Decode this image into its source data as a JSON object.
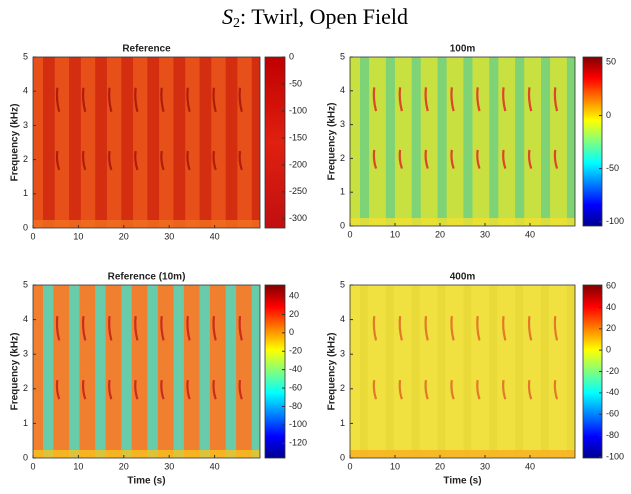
{
  "suptitle": {
    "symbol": "S",
    "subscript": "2",
    "text": ": Twirl, Open Field"
  },
  "chart_data": [
    {
      "type": "spectrogram",
      "title": "Reference",
      "ylabel": "Frequency (kHz)",
      "colormap": "red",
      "xlim": [
        0,
        50
      ],
      "xticks": [
        0,
        10,
        20,
        30,
        40
      ],
      "ylim": [
        0,
        5
      ],
      "yticks": [
        0,
        1,
        2,
        3,
        4,
        5
      ],
      "clim": [
        -317,
        0
      ],
      "cticks": [
        0,
        -50,
        -100,
        -150,
        -200,
        -250,
        -300
      ]
    },
    {
      "type": "spectrogram",
      "title": "100m",
      "ylabel": "Frequency (kHz)",
      "colormap": "jet",
      "xlim": [
        0,
        50
      ],
      "xticks": [
        0,
        10,
        20,
        30,
        40
      ],
      "ylim": [
        0,
        5
      ],
      "yticks": [
        0,
        1,
        2,
        3,
        4,
        5
      ],
      "clim": [
        -104,
        55
      ],
      "cticks": [
        50,
        0,
        -50,
        -100
      ]
    },
    {
      "type": "spectrogram",
      "title": "Reference (10m)",
      "ylabel": "Frequency (kHz)",
      "xlabel": "Time (s)",
      "colormap": "jet",
      "xlim": [
        0,
        50
      ],
      "xticks": [
        0,
        10,
        20,
        30,
        40
      ],
      "ylim": [
        0,
        5
      ],
      "yticks": [
        0,
        1,
        2,
        3,
        4,
        5
      ],
      "clim": [
        -136,
        52
      ],
      "cticks": [
        40,
        20,
        0,
        -20,
        -40,
        -60,
        -80,
        -100,
        -120
      ]
    },
    {
      "type": "spectrogram",
      "title": "400m",
      "ylabel": "Frequency (kHz)",
      "xlabel": "Time (s)",
      "colormap": "jet",
      "xlim": [
        0,
        50
      ],
      "xticks": [
        0,
        10,
        20,
        30,
        40
      ],
      "ylim": [
        0,
        5
      ],
      "yticks": [
        0,
        1,
        2,
        3,
        4,
        5
      ],
      "clim": [
        -101,
        61
      ],
      "cticks": [
        60,
        40,
        20,
        0,
        -20,
        -40,
        -60,
        -80,
        -100
      ]
    }
  ]
}
